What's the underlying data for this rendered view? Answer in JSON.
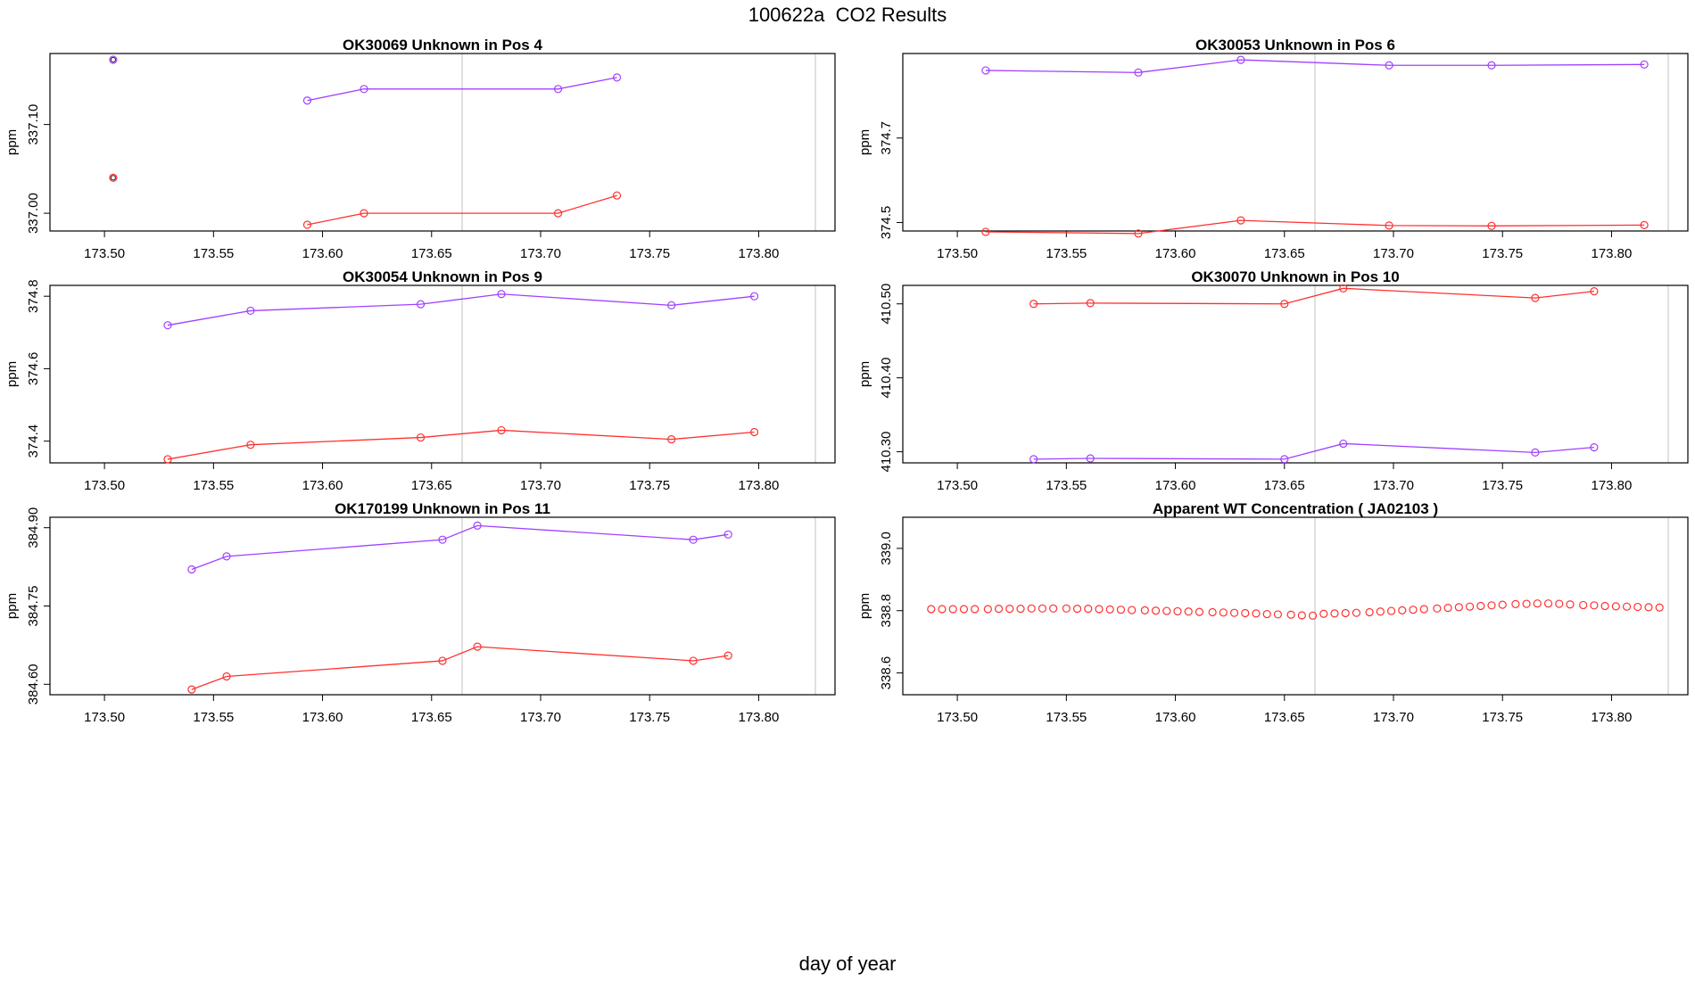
{
  "page_title": "100622a  CO2 Results",
  "x_axis_label": "day of year",
  "colors": {
    "series_a": "#a040ff",
    "series_b": "#ff3030",
    "frame": "#000000",
    "vline": "#cccccc",
    "dark_point": "#202020"
  },
  "chart_data": [
    {
      "type": "line",
      "title": "OK30069    Unknown in Pos 4",
      "ylabel": "ppm",
      "xlim": [
        173.475,
        173.835
      ],
      "ylim": [
        336.98,
        337.18
      ],
      "xticks": [
        "173.50",
        "173.55",
        "173.60",
        "173.65",
        "173.70",
        "173.75",
        "173.80"
      ],
      "yticks": [
        "337.00",
        "337.10"
      ],
      "vlines": [
        173.664,
        173.826
      ],
      "series": [
        {
          "name": "series_a",
          "color": "#a040ff",
          "x": [
            173.593,
            173.619,
            173.708,
            173.735
          ],
          "y": [
            337.127,
            337.14,
            337.14,
            337.153
          ]
        },
        {
          "name": "series_b",
          "color": "#ff3030",
          "x": [
            173.593,
            173.619,
            173.708,
            173.735
          ],
          "y": [
            336.987,
            337.0,
            337.0,
            337.02
          ]
        }
      ],
      "points": [
        {
          "x": 173.504,
          "y": 337.173,
          "color": "#a040ff"
        },
        {
          "x": 173.504,
          "y": 337.04,
          "color": "#ff3030"
        }
      ]
    },
    {
      "type": "line",
      "title": "OK30053    Unknown in Pos 6",
      "ylabel": "ppm",
      "xlim": [
        173.475,
        173.835
      ],
      "ylim": [
        374.48,
        374.9
      ],
      "xticks": [
        "173.50",
        "173.55",
        "173.60",
        "173.65",
        "173.70",
        "173.75",
        "173.80"
      ],
      "yticks": [
        "374.5",
        "374.7"
      ],
      "vlines": [
        173.664,
        173.826
      ],
      "series": [
        {
          "name": "series_a",
          "color": "#a040ff",
          "x": [
            173.513,
            173.583,
            173.63,
            173.698,
            173.745,
            173.815
          ],
          "y": [
            374.86,
            374.855,
            374.885,
            374.872,
            374.872,
            374.874
          ]
        },
        {
          "name": "series_b",
          "color": "#ff3030",
          "x": [
            173.513,
            173.583,
            173.63,
            173.698,
            173.745,
            173.815
          ],
          "y": [
            374.478,
            374.474,
            374.505,
            374.493,
            374.492,
            374.494
          ]
        }
      ]
    },
    {
      "type": "line",
      "title": "OK30054    Unknown in Pos 9",
      "ylabel": "ppm",
      "xlim": [
        173.475,
        173.835
      ],
      "ylim": [
        374.34,
        374.83
      ],
      "xticks": [
        "173.50",
        "173.55",
        "173.60",
        "173.65",
        "173.70",
        "173.75",
        "173.80"
      ],
      "yticks": [
        "374.4",
        "374.6",
        "374.8"
      ],
      "vlines": [
        173.664,
        173.826
      ],
      "series": [
        {
          "name": "series_a",
          "color": "#a040ff",
          "x": [
            173.529,
            173.567,
            173.645,
            173.682,
            173.76,
            173.798
          ],
          "y": [
            374.72,
            374.76,
            374.778,
            374.806,
            374.775,
            374.8
          ]
        },
        {
          "name": "series_b",
          "color": "#ff3030",
          "x": [
            173.529,
            173.567,
            173.645,
            173.682,
            173.76,
            173.798
          ],
          "y": [
            374.35,
            374.39,
            374.41,
            374.43,
            374.405,
            374.425
          ]
        }
      ]
    },
    {
      "type": "line",
      "title": "OK30070    Unknown in Pos 10",
      "ylabel": "ppm",
      "xlim": [
        173.475,
        173.835
      ],
      "ylim": [
        410.285,
        410.525
      ],
      "xticks": [
        "173.50",
        "173.55",
        "173.60",
        "173.65",
        "173.70",
        "173.75",
        "173.80"
      ],
      "yticks": [
        "410.30",
        "410.40",
        "410.50"
      ],
      "vlines": [
        173.664,
        173.826
      ],
      "series": [
        {
          "name": "series_b",
          "color": "#ff3030",
          "x": [
            173.535,
            173.561,
            173.65,
            173.677,
            173.765,
            173.792
          ],
          "y": [
            410.5,
            410.501,
            410.5,
            410.521,
            410.508,
            410.517
          ]
        },
        {
          "name": "series_a",
          "color": "#a040ff",
          "x": [
            173.535,
            173.561,
            173.65,
            173.677,
            173.765,
            173.792
          ],
          "y": [
            410.29,
            410.291,
            410.29,
            410.311,
            410.299,
            410.306
          ]
        }
      ]
    },
    {
      "type": "line",
      "title": "OK170199    Unknown in Pos 11",
      "ylabel": "ppm",
      "xlim": [
        173.475,
        173.835
      ],
      "ylim": [
        384.58,
        384.92
      ],
      "xticks": [
        "173.50",
        "173.55",
        "173.60",
        "173.65",
        "173.70",
        "173.75",
        "173.80"
      ],
      "yticks": [
        "384.60",
        "384.75",
        "384.90"
      ],
      "vlines": [
        173.664,
        173.826
      ],
      "series": [
        {
          "name": "series_a",
          "color": "#a040ff",
          "x": [
            173.54,
            173.556,
            173.655,
            173.671,
            173.77,
            173.786
          ],
          "y": [
            384.82,
            384.845,
            384.877,
            384.904,
            384.877,
            384.887
          ]
        },
        {
          "name": "series_b",
          "color": "#ff3030",
          "x": [
            173.54,
            173.556,
            173.655,
            173.671,
            173.77,
            173.786
          ],
          "y": [
            384.59,
            384.615,
            384.645,
            384.672,
            384.645,
            384.655
          ]
        }
      ]
    },
    {
      "type": "scatter",
      "title": "Apparent WT Concentration ( JA02103 )",
      "ylabel": "ppm",
      "xlim": [
        173.475,
        173.835
      ],
      "ylim": [
        338.53,
        339.1
      ],
      "xticks": [
        "173.50",
        "173.55",
        "173.60",
        "173.65",
        "173.70",
        "173.75",
        "173.80"
      ],
      "yticks": [
        "338.6",
        "338.8",
        "339.0"
      ],
      "vlines": [
        173.664,
        173.826
      ],
      "series": [
        {
          "name": "wt",
          "color": "#ff3030",
          "markers_only": true,
          "x": [
            173.488,
            173.493,
            173.498,
            173.503,
            173.508,
            173.514,
            173.519,
            173.524,
            173.529,
            173.534,
            173.539,
            173.544,
            173.55,
            173.555,
            173.56,
            173.565,
            173.57,
            173.575,
            173.58,
            173.586,
            173.591,
            173.596,
            173.601,
            173.606,
            173.611,
            173.617,
            173.622,
            173.627,
            173.632,
            173.637,
            173.642,
            173.647,
            173.653,
            173.658,
            173.663,
            173.668,
            173.673,
            173.678,
            173.683,
            173.689,
            173.694,
            173.699,
            173.704,
            173.709,
            173.714,
            173.72,
            173.725,
            173.73,
            173.735,
            173.74,
            173.745,
            173.75,
            173.756,
            173.761,
            173.766,
            173.771,
            173.776,
            173.781,
            173.787,
            173.792,
            173.797,
            173.802,
            173.807,
            173.812,
            173.817,
            173.822
          ],
          "y": [
            338.805,
            338.805,
            338.805,
            338.805,
            338.805,
            338.805,
            338.806,
            338.806,
            338.806,
            338.807,
            338.807,
            338.807,
            338.807,
            338.806,
            338.806,
            338.805,
            338.804,
            338.803,
            338.802,
            338.801,
            338.8,
            338.799,
            338.798,
            338.797,
            338.796,
            338.795,
            338.794,
            338.793,
            338.792,
            338.791,
            338.789,
            338.788,
            338.787,
            338.785,
            338.784,
            338.79,
            338.791,
            338.792,
            338.793,
            338.795,
            338.797,
            338.799,
            338.801,
            338.803,
            338.805,
            338.807,
            338.809,
            338.811,
            338.813,
            338.815,
            338.817,
            338.819,
            338.821,
            338.822,
            338.823,
            338.823,
            338.822,
            338.82,
            338.818,
            338.817,
            338.815,
            338.814,
            338.813,
            338.812,
            338.811,
            338.81
          ]
        }
      ]
    }
  ]
}
